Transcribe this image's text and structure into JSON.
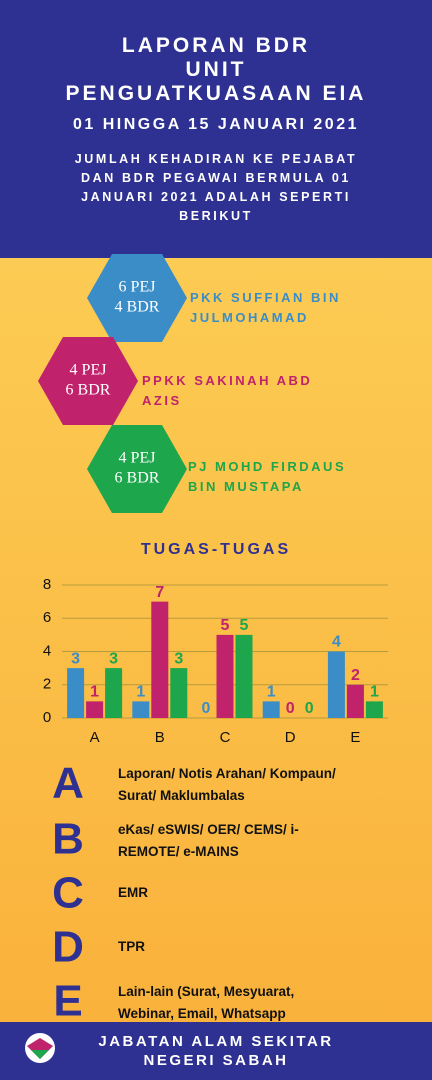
{
  "header": {
    "title_lines": [
      "LAPORAN BDR",
      "UNIT",
      "PENGUATKUASAAN EIA"
    ],
    "date": "01 HINGGA 15 JANUARI 2021",
    "intro_lines": [
      "JUMLAH KEHADIRAN KE PEJABAT",
      "DAN BDR PEGAWAI BERMULA 01",
      "JANUARI 2021 ADALAH SEPERTI",
      "BERIKUT"
    ]
  },
  "persons": [
    {
      "hex_lines": [
        "6 PEJ",
        "4 BDR"
      ],
      "name_lines": [
        "PKK SUFFIAN BIN",
        "JULMOHAMAD"
      ],
      "color": "#3b8dc8"
    },
    {
      "hex_lines": [
        "4 PEJ",
        "6 BDR"
      ],
      "name_lines": [
        "PPKK SAKINAH ABD",
        "AZIS"
      ],
      "color": "#c1226c"
    },
    {
      "hex_lines": [
        "4 PEJ",
        "6 BDR"
      ],
      "name_lines": [
        "PJ MOHD FIRDAUS",
        "BIN MUSTAPA"
      ],
      "color": "#1da64c"
    }
  ],
  "chart_data": {
    "type": "bar",
    "title": "TUGAS-TUGAS",
    "categories": [
      "A",
      "B",
      "C",
      "D",
      "E"
    ],
    "series": [
      {
        "color": "#3b8dc8",
        "values": [
          3,
          1,
          0,
          1,
          4
        ]
      },
      {
        "color": "#c1226c",
        "values": [
          1,
          7,
          5,
          0,
          2
        ]
      },
      {
        "color": "#1da64c",
        "values": [
          3,
          3,
          5,
          0,
          1
        ]
      }
    ],
    "ylim": [
      0,
      8
    ],
    "yticks": [
      0,
      2,
      4,
      6,
      8
    ],
    "grid": true,
    "data_labels": true
  },
  "legend": [
    {
      "letter": "A",
      "text_lines": [
        "Laporan/ Notis Arahan/ Kompaun/",
        "Surat/ Maklumbalas"
      ]
    },
    {
      "letter": "B",
      "text_lines": [
        "eKas/ eSWIS/ OER/ CEMS/ i-",
        "REMOTE/ e-MAINS"
      ]
    },
    {
      "letter": "C",
      "text_lines": [
        "EMR"
      ]
    },
    {
      "letter": "D",
      "text_lines": [
        "TPR"
      ]
    },
    {
      "letter": "E",
      "text_lines": [
        "Lain-lain (Surat, Mesyuarat,",
        "Webinar, Email, Whatsapp"
      ]
    }
  ],
  "footer": {
    "lines": [
      "JABATAN ALAM SEKITAR",
      "NEGERI SABAH"
    ]
  }
}
